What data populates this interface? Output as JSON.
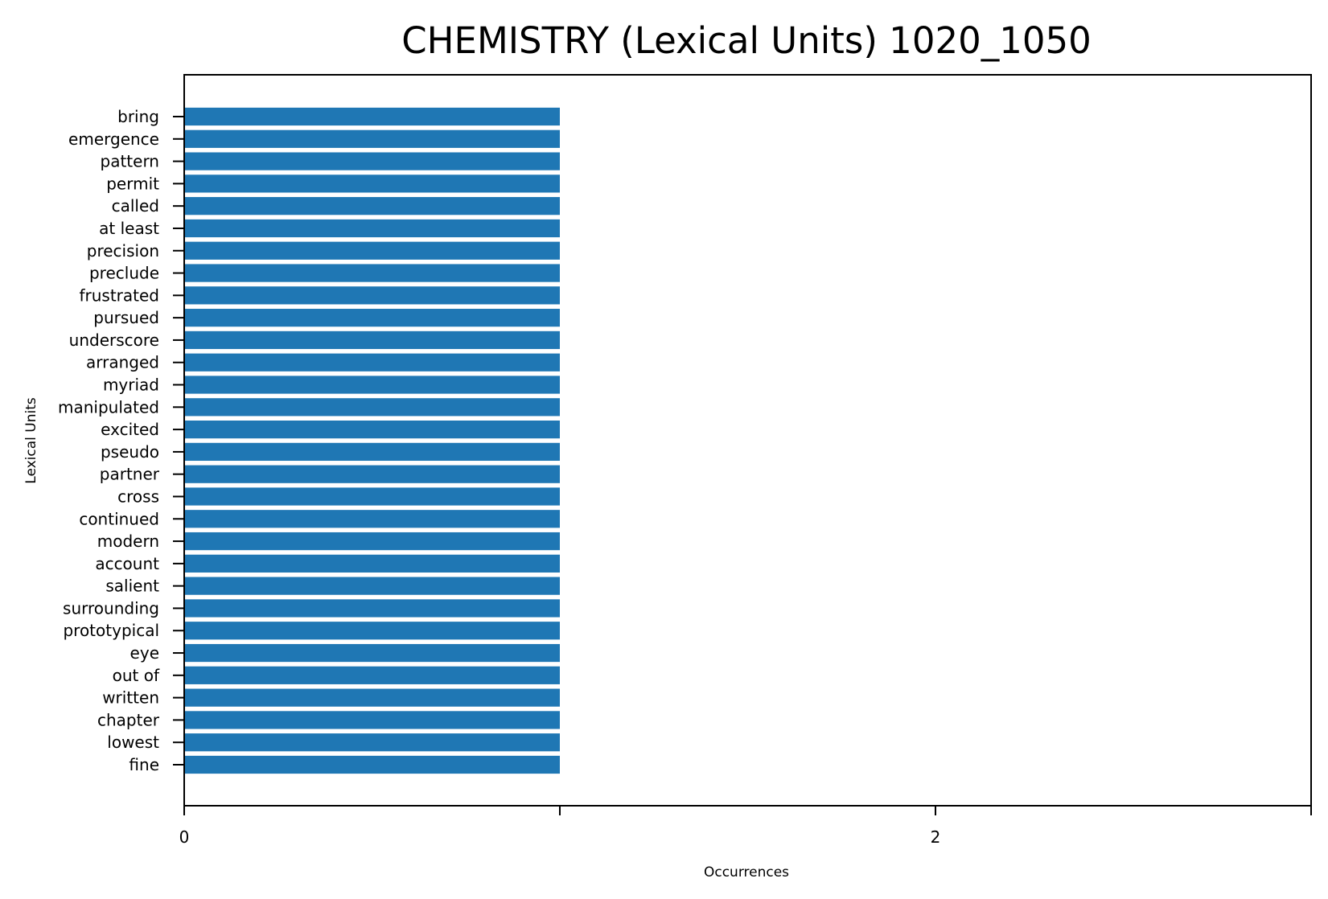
{
  "chart_data": {
    "type": "bar",
    "orientation": "horizontal",
    "title": "CHEMISTRY (Lexical Units) 1020_1050",
    "xlabel": "Occurrences",
    "ylabel": "Lexical Units",
    "categories": [
      "bring",
      "emergence",
      "pattern",
      "permit",
      "called",
      "at least",
      "precision",
      "preclude",
      "frustrated",
      "pursued",
      "underscore",
      "arranged",
      "myriad",
      "manipulated",
      "excited",
      "pseudo",
      "partner",
      "cross",
      "continued",
      "modern",
      "account",
      "salient",
      "surrounding",
      "prototypical",
      "eye",
      "out of",
      "written",
      "chapter",
      "lowest",
      "fine"
    ],
    "values": [
      1,
      1,
      1,
      1,
      1,
      1,
      1,
      1,
      1,
      1,
      1,
      1,
      1,
      1,
      1,
      1,
      1,
      1,
      1,
      1,
      1,
      1,
      1,
      1,
      1,
      1,
      1,
      1,
      1,
      1
    ],
    "xlim": [
      0,
      3
    ],
    "xticks": [
      0,
      1,
      2,
      3
    ],
    "xtick_labels": [
      "0",
      "",
      "2",
      ""
    ],
    "bar_color": "#1f77b4",
    "grid": false,
    "legend": "none"
  }
}
